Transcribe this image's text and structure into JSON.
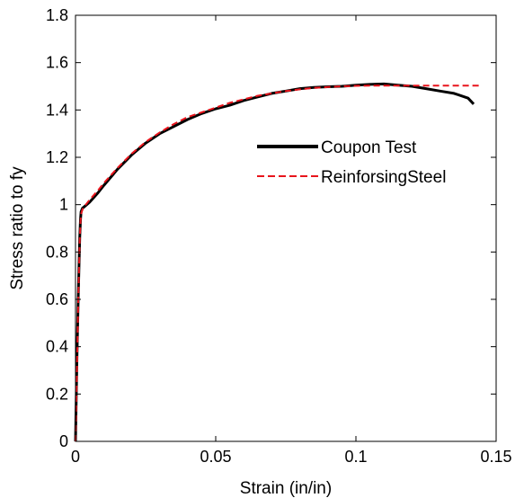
{
  "chart_data": {
    "type": "line",
    "title": "",
    "xlabel": "Strain (in/in)",
    "ylabel": "Stress ratio to fy",
    "xlim": [
      0,
      0.15
    ],
    "ylim": [
      0,
      1.8
    ],
    "x_ticks": [
      0,
      0.05,
      0.1,
      0.15
    ],
    "x_tick_labels": [
      "0",
      "0.05",
      "0.1",
      "0.15"
    ],
    "y_ticks": [
      0,
      0.2,
      0.4,
      0.6,
      0.8,
      1.0,
      1.2,
      1.4,
      1.6,
      1.8
    ],
    "y_tick_labels": [
      "0",
      "0.2",
      "0.4",
      "0.6",
      "0.8",
      "1",
      "1.2",
      "1.4",
      "1.6",
      "1.8"
    ],
    "grid": false,
    "legend_position": "right",
    "series": [
      {
        "name": "Coupon Test",
        "color": "#000000",
        "style": "solid",
        "x": [
          0,
          0.0005,
          0.001,
          0.0015,
          0.0018,
          0.002,
          0.0025,
          0.003,
          0.005,
          0.008,
          0.01,
          0.015,
          0.02,
          0.025,
          0.03,
          0.035,
          0.04,
          0.045,
          0.05,
          0.055,
          0.06,
          0.065,
          0.07,
          0.075,
          0.08,
          0.085,
          0.09,
          0.095,
          0.1,
          0.105,
          0.11,
          0.115,
          0.12,
          0.125,
          0.13,
          0.135,
          0.14,
          0.142
        ],
        "y": [
          0,
          0.35,
          0.62,
          0.86,
          0.94,
          0.97,
          0.985,
          0.99,
          1.01,
          1.05,
          1.08,
          1.15,
          1.21,
          1.26,
          1.3,
          1.33,
          1.36,
          1.385,
          1.405,
          1.42,
          1.44,
          1.455,
          1.47,
          1.48,
          1.49,
          1.495,
          1.498,
          1.5,
          1.505,
          1.508,
          1.51,
          1.505,
          1.5,
          1.49,
          1.48,
          1.47,
          1.45,
          1.425
        ]
      },
      {
        "name": "ReinforsingSteel",
        "color": "#e8141c",
        "style": "dashed",
        "x": [
          0,
          0.0005,
          0.001,
          0.0015,
          0.0018,
          0.002,
          0.0025,
          0.003,
          0.005,
          0.008,
          0.01,
          0.015,
          0.02,
          0.025,
          0.03,
          0.035,
          0.04,
          0.045,
          0.05,
          0.055,
          0.06,
          0.065,
          0.07,
          0.075,
          0.08,
          0.085,
          0.09,
          0.095,
          0.1,
          0.105,
          0.11,
          0.115,
          0.12,
          0.125,
          0.13,
          0.135,
          0.14,
          0.145
        ],
        "y": [
          0,
          0.3,
          0.6,
          0.85,
          0.93,
          0.96,
          0.98,
          0.99,
          1.02,
          1.06,
          1.09,
          1.155,
          1.215,
          1.265,
          1.305,
          1.34,
          1.37,
          1.39,
          1.41,
          1.43,
          1.445,
          1.46,
          1.47,
          1.48,
          1.487,
          1.493,
          1.497,
          1.5,
          1.502,
          1.503,
          1.503,
          1.503,
          1.503,
          1.503,
          1.503,
          1.503,
          1.503,
          1.503
        ]
      }
    ]
  }
}
